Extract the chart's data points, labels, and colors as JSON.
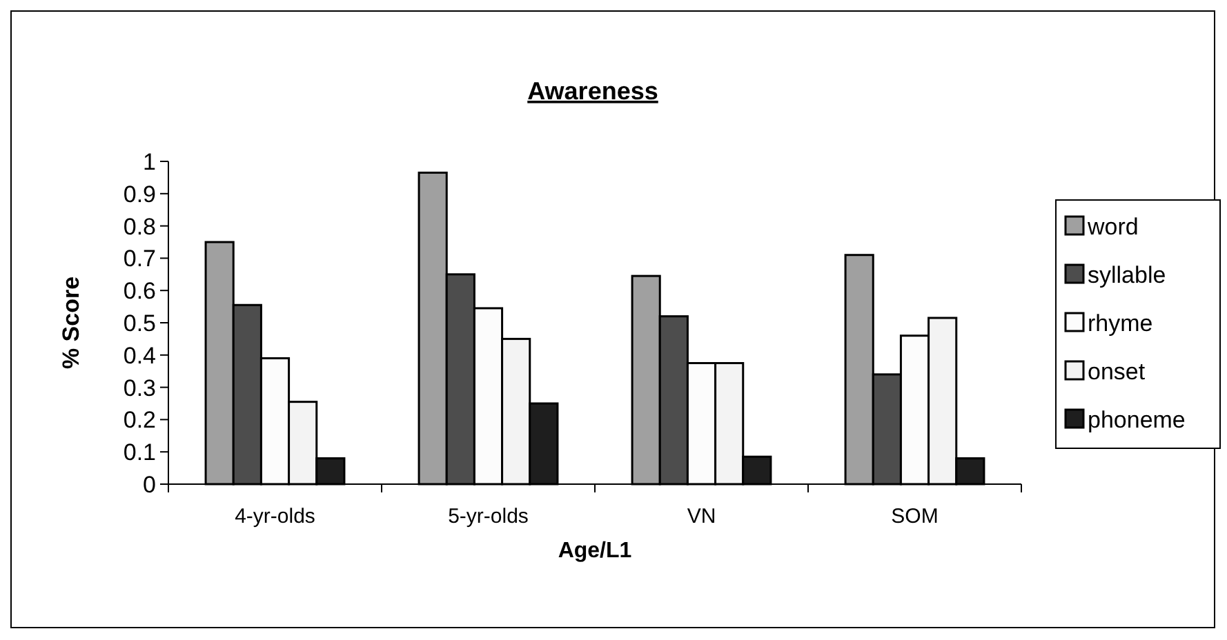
{
  "chart_data": {
    "type": "bar",
    "title": "Awareness",
    "xlabel": "Age/L1",
    "ylabel": "% Score",
    "categories": [
      "4-yr-olds",
      "5-yr-olds",
      "VN",
      "SOM"
    ],
    "series": [
      {
        "name": "word",
        "color": "#a0a0a0",
        "values": [
          0.75,
          0.965,
          0.645,
          0.71
        ]
      },
      {
        "name": "syllable",
        "color": "#4d4d4d",
        "values": [
          0.555,
          0.65,
          0.52,
          0.34
        ]
      },
      {
        "name": "rhyme",
        "color": "#fcfcfc",
        "values": [
          0.39,
          0.545,
          0.375,
          0.46
        ]
      },
      {
        "name": "onset",
        "color": "#f3f3f3",
        "values": [
          0.255,
          0.45,
          0.375,
          0.515
        ]
      },
      {
        "name": "phoneme",
        "color": "#1e1e1e",
        "values": [
          0.08,
          0.25,
          0.085,
          0.08
        ]
      }
    ],
    "ylim": [
      0,
      1
    ],
    "yticks": [
      0,
      0.1,
      0.2,
      0.3,
      0.4,
      0.5,
      0.6,
      0.7,
      0.8,
      0.9,
      1
    ],
    "grid": false,
    "legend": "right"
  }
}
